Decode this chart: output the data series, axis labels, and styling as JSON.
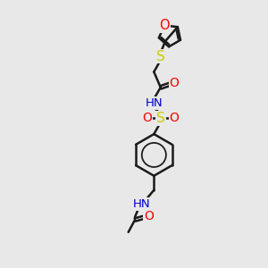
{
  "bg_color": "#e8e8e8",
  "bond_color": "#1a1a1a",
  "O_color": "#ff0000",
  "N_color": "#0000cd",
  "S_color": "#cccc00",
  "lw": 1.8,
  "fs": 9.5,
  "xlim": [
    0,
    10
  ],
  "ylim": [
    0,
    14
  ]
}
